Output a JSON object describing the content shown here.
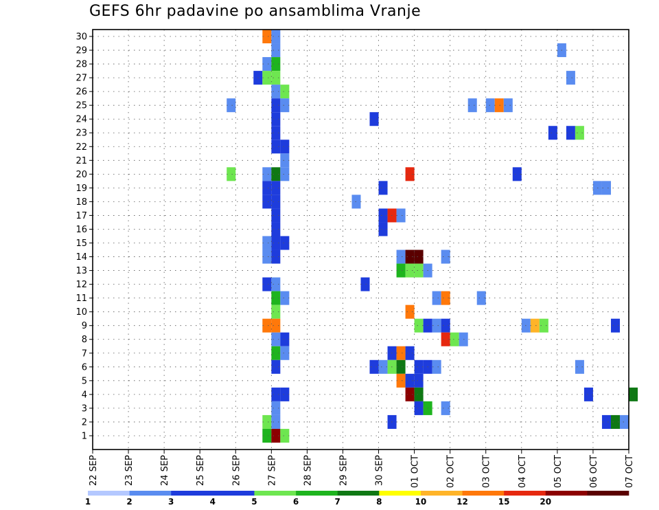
{
  "title": "GEFS 6hr padavine po ansamblima Vranje",
  "chart_data": {
    "type": "heatmap",
    "title": "GEFS 6hr padavine po ansamblima Vranje",
    "xlabel": "",
    "ylabel": "",
    "x_tick_labels": [
      "22 SEP",
      "23 SEP",
      "24 SEP",
      "25 SEP",
      "26 SEP",
      "27 SEP",
      "28 SEP",
      "29 SEP",
      "30 SEP",
      "01 OCT",
      "02 OCT",
      "03 OCT",
      "04 OCT",
      "05 OCT",
      "06 OCT",
      "07 OCT"
    ],
    "y_tick_labels": [
      "1",
      "2",
      "3",
      "4",
      "5",
      "6",
      "7",
      "8",
      "9",
      "10",
      "11",
      "12",
      "13",
      "14",
      "15",
      "16",
      "17",
      "18",
      "19",
      "20",
      "21",
      "22",
      "23",
      "24",
      "25",
      "26",
      "27",
      "28",
      "29",
      "30"
    ],
    "y_range": [
      1,
      30
    ],
    "time_step": "6hr",
    "grid": true,
    "colorbar": {
      "levels": [
        "1",
        "2",
        "3",
        "4",
        "5",
        "6",
        "7",
        "8",
        "10",
        "12",
        "15",
        "20"
      ],
      "colors": [
        "#b4c8ff",
        "#5a8cf0",
        "#1e3cdc",
        "#1e3cdc",
        "#6ee650",
        "#1eb41e",
        "#0f7814",
        "#ffff00",
        "#ffb428",
        "#ff780a",
        "#e6280f",
        "#8c0000",
        "#5a0000"
      ]
    },
    "cells": [
      [
        30,
        4.75,
        10
      ],
      [
        30,
        5.0,
        1
      ],
      [
        29,
        5.0,
        1
      ],
      [
        29,
        13.0,
        1
      ],
      [
        28,
        4.75,
        1
      ],
      [
        28,
        5.0,
        5
      ],
      [
        27,
        4.5,
        2
      ],
      [
        27,
        4.75,
        4
      ],
      [
        27,
        5.0,
        4
      ],
      [
        27,
        13.25,
        1
      ],
      [
        26,
        5.0,
        1
      ],
      [
        26,
        5.25,
        4
      ],
      [
        25,
        3.75,
        1
      ],
      [
        25,
        5.0,
        3
      ],
      [
        25,
        5.25,
        1
      ],
      [
        25,
        10.5,
        1
      ],
      [
        25,
        11.0,
        1
      ],
      [
        25,
        11.25,
        10
      ],
      [
        25,
        11.5,
        1
      ],
      [
        24,
        5.0,
        3
      ],
      [
        24,
        7.75,
        2
      ],
      [
        23,
        5.0,
        2
      ],
      [
        23,
        12.75,
        2
      ],
      [
        23,
        13.25,
        3
      ],
      [
        23,
        13.5,
        4
      ],
      [
        22,
        5.0,
        3
      ],
      [
        22,
        5.25,
        3
      ],
      [
        21,
        5.25,
        1
      ],
      [
        20,
        3.75,
        4
      ],
      [
        20,
        4.75,
        1
      ],
      [
        20,
        5.0,
        6
      ],
      [
        20,
        5.25,
        1
      ],
      [
        20,
        8.75,
        12
      ],
      [
        20,
        11.75,
        3
      ],
      [
        19,
        4.75,
        3
      ],
      [
        19,
        5.0,
        3
      ],
      [
        19,
        8.0,
        2
      ],
      [
        19,
        14.0,
        1
      ],
      [
        19,
        14.25,
        1
      ],
      [
        18,
        4.75,
        3
      ],
      [
        18,
        5.0,
        2
      ],
      [
        18,
        7.25,
        1
      ],
      [
        17,
        5.0,
        2
      ],
      [
        17,
        8.0,
        3
      ],
      [
        17,
        8.25,
        12
      ],
      [
        17,
        8.5,
        1
      ],
      [
        16,
        5.0,
        2
      ],
      [
        16,
        8.0,
        3
      ],
      [
        15,
        4.75,
        1
      ],
      [
        15,
        5.0,
        3
      ],
      [
        15,
        5.25,
        3
      ],
      [
        14,
        4.75,
        1
      ],
      [
        14,
        5.0,
        2
      ],
      [
        14,
        8.5,
        1
      ],
      [
        14,
        8.75,
        20
      ],
      [
        14,
        9.0,
        20
      ],
      [
        14,
        9.75,
        1
      ],
      [
        13,
        8.5,
        5
      ],
      [
        13,
        8.75,
        4
      ],
      [
        13,
        9.0,
        4
      ],
      [
        13,
        9.25,
        1
      ],
      [
        12,
        4.75,
        3
      ],
      [
        12,
        5.0,
        1
      ],
      [
        12,
        7.5,
        3
      ],
      [
        11,
        5.0,
        5
      ],
      [
        11,
        5.25,
        1
      ],
      [
        11,
        9.5,
        1
      ],
      [
        11,
        9.75,
        10
      ],
      [
        11,
        10.75,
        1
      ],
      [
        10,
        5.0,
        4
      ],
      [
        10,
        8.75,
        10
      ],
      [
        9,
        4.75,
        10
      ],
      [
        9,
        5.0,
        10
      ],
      [
        9,
        9.0,
        4
      ],
      [
        9,
        9.25,
        3
      ],
      [
        9,
        9.5,
        1
      ],
      [
        9,
        9.75,
        2
      ],
      [
        9,
        12.0,
        1
      ],
      [
        9,
        12.25,
        8
      ],
      [
        9,
        12.5,
        4
      ],
      [
        9,
        14.5,
        3
      ],
      [
        8,
        5.0,
        1
      ],
      [
        8,
        5.25,
        2
      ],
      [
        8,
        9.75,
        12
      ],
      [
        8,
        10.0,
        4
      ],
      [
        8,
        10.25,
        1
      ],
      [
        7,
        5.0,
        5
      ],
      [
        7,
        5.25,
        1
      ],
      [
        7,
        8.25,
        3
      ],
      [
        7,
        8.5,
        10
      ],
      [
        7,
        8.75,
        3
      ],
      [
        6,
        5.0,
        3
      ],
      [
        6,
        7.75,
        2
      ],
      [
        6,
        8.0,
        1
      ],
      [
        6,
        8.25,
        4
      ],
      [
        6,
        8.5,
        6
      ],
      [
        6,
        9.0,
        3
      ],
      [
        6,
        9.25,
        3
      ],
      [
        6,
        9.5,
        1
      ],
      [
        6,
        13.5,
        1
      ],
      [
        5,
        8.5,
        10
      ],
      [
        5,
        8.75,
        2
      ],
      [
        5,
        9.0,
        2
      ],
      [
        4,
        5.0,
        3
      ],
      [
        4,
        5.25,
        3
      ],
      [
        4,
        8.75,
        15
      ],
      [
        4,
        9.0,
        6
      ],
      [
        4,
        13.75,
        2
      ],
      [
        4,
        15.0,
        6
      ],
      [
        3,
        5.0,
        1
      ],
      [
        3,
        9.0,
        2
      ],
      [
        3,
        9.25,
        5
      ],
      [
        3,
        9.75,
        1
      ],
      [
        2,
        4.75,
        4
      ],
      [
        2,
        5.0,
        1
      ],
      [
        2,
        8.25,
        2
      ],
      [
        2,
        14.25,
        3
      ],
      [
        2,
        14.5,
        6
      ],
      [
        2,
        14.75,
        1
      ],
      [
        1,
        4.75,
        5
      ],
      [
        1,
        5.0,
        15
      ],
      [
        1,
        5.25,
        4
      ]
    ],
    "cells_format": "[member, time (days from 22 SEP), precipitation value]"
  }
}
